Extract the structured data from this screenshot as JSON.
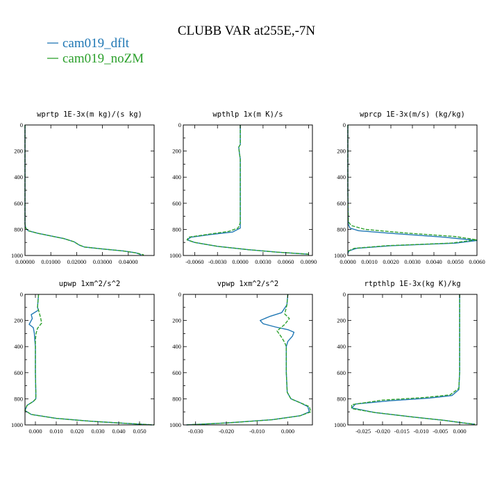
{
  "title": "CLUBB VAR at255E,-7N",
  "legend": [
    {
      "name": "cam019_dflt",
      "color": "#1f77b4"
    },
    {
      "name": "cam019_noZM",
      "color": "#2ca02c"
    }
  ],
  "chart_data": [
    {
      "type": "line",
      "title": "wprtp  1E-3x(m kg)/(s kg)",
      "xlim": [
        0,
        0.05
      ],
      "ylim": [
        0,
        1000
      ],
      "y_inverted": true,
      "xticks": [
        0,
        0.01,
        0.02,
        0.03,
        0.04
      ],
      "xtick_labels": [
        "0.00000",
        "0.01000",
        "0.02000",
        "0.03000",
        "0.04000"
      ],
      "yticks": [
        0,
        200,
        400,
        600,
        800,
        1000
      ],
      "series": [
        {
          "name": "cam019_dflt",
          "x": [
            0,
            0,
            0,
            0.0003,
            0.0012,
            0.005,
            0.01,
            0.015,
            0.019,
            0.021,
            0.023,
            0.03,
            0.038,
            0.043,
            0.045
          ],
          "y": [
            0,
            600,
            760,
            790,
            810,
            830,
            850,
            870,
            895,
            920,
            935,
            950,
            965,
            980,
            995
          ]
        },
        {
          "name": "cam019_noZM",
          "x": [
            0,
            0,
            0,
            0.0003,
            0.0012,
            0.005,
            0.01,
            0.015,
            0.019,
            0.021,
            0.023,
            0.03,
            0.038,
            0.043,
            0.046
          ],
          "y": [
            0,
            600,
            760,
            790,
            810,
            830,
            850,
            870,
            895,
            920,
            935,
            950,
            965,
            980,
            995
          ]
        }
      ]
    },
    {
      "type": "line",
      "title": "wpthlp  1x(m K)/s",
      "xlim": [
        -0.0075,
        0.0095
      ],
      "ylim": [
        0,
        1000
      ],
      "y_inverted": true,
      "xticks": [
        -0.006,
        -0.003,
        0,
        0.003,
        0.006,
        0.009
      ],
      "xtick_labels": [
        "-0.0060",
        "-0.0030",
        "0.0000",
        "0.0030",
        "0.0060",
        "0.0090"
      ],
      "yticks": [
        0,
        200,
        400,
        600,
        800,
        1000
      ],
      "series": [
        {
          "name": "cam019_dflt",
          "x": [
            0,
            0,
            -0.0002,
            -0.0001,
            0,
            0,
            0,
            0,
            0,
            -0.001,
            -0.004,
            -0.0065,
            -0.007,
            -0.006,
            -0.003,
            0.001,
            0.005,
            0.009
          ],
          "y": [
            0,
            150,
            170,
            220,
            260,
            400,
            600,
            750,
            790,
            820,
            840,
            860,
            880,
            900,
            930,
            955,
            975,
            990
          ]
        },
        {
          "name": "cam019_noZM",
          "x": [
            0,
            0,
            -0.0002,
            -0.0001,
            0,
            0,
            0,
            0,
            -0.0003,
            -0.0015,
            -0.0045,
            -0.0068,
            -0.007,
            -0.006,
            -0.003,
            0.001,
            0.005,
            0.009
          ],
          "y": [
            0,
            150,
            170,
            220,
            260,
            400,
            600,
            750,
            790,
            815,
            840,
            860,
            880,
            900,
            930,
            955,
            975,
            990
          ]
        }
      ]
    },
    {
      "type": "line",
      "title": "wprcp  1E-3x(m/s) (kg/kg)",
      "xlim": [
        0,
        0.006
      ],
      "ylim": [
        0,
        1000
      ],
      "y_inverted": true,
      "xticks": [
        0,
        0.001,
        0.002,
        0.003,
        0.004,
        0.005,
        0.006
      ],
      "xtick_labels": [
        "0.0000",
        "0.0010",
        "0.0020",
        "0.0030",
        "0.0040",
        "0.0050",
        "0.0060"
      ],
      "yticks": [
        0,
        200,
        400,
        600,
        800,
        1000
      ],
      "series": [
        {
          "name": "cam019_dflt",
          "x": [
            0,
            0,
            2e-05,
            0.0001,
            0.0005,
            0.002,
            0.0045,
            0.006,
            0.005,
            0.002,
            0.0004,
            5e-05,
            0
          ],
          "y": [
            0,
            500,
            760,
            790,
            810,
            830,
            860,
            885,
            905,
            925,
            945,
            965,
            985
          ]
        },
        {
          "name": "cam019_noZM",
          "x": [
            0,
            0,
            2e-05,
            0.00015,
            0.0008,
            0.0025,
            0.005,
            0.006,
            0.0048,
            0.0018,
            0.0003,
            3e-05,
            0
          ],
          "y": [
            0,
            500,
            740,
            770,
            800,
            825,
            855,
            880,
            905,
            925,
            945,
            965,
            985
          ]
        }
      ]
    },
    {
      "type": "line",
      "title": "upwp  1xm^2/s^2",
      "xlim": [
        -0.005,
        0.057
      ],
      "ylim": [
        0,
        1000
      ],
      "y_inverted": true,
      "xticks": [
        0,
        0.01,
        0.02,
        0.03,
        0.04,
        0.05
      ],
      "xtick_labels": [
        "0.000",
        "0.010",
        "0.020",
        "0.030",
        "0.040",
        "0.050"
      ],
      "yticks": [
        0,
        200,
        400,
        600,
        800,
        1000
      ],
      "series": [
        {
          "name": "cam019_dflt",
          "x": [
            0.0015,
            0.001,
            0.0015,
            -0.002,
            -0.0015,
            -0.003,
            -0.001,
            -0.0005,
            -0.0003,
            0,
            0,
            0.0002,
            0.0002,
            -0.001,
            -0.004,
            -0.005,
            -0.002,
            0.01,
            0.025,
            0.04,
            0.056
          ],
          "y": [
            0,
            100,
            120,
            155,
            185,
            230,
            255,
            300,
            350,
            400,
            600,
            750,
            800,
            820,
            850,
            890,
            920,
            950,
            970,
            985,
            1000
          ]
        },
        {
          "name": "cam019_noZM",
          "x": [
            0.0015,
            0.001,
            0.0015,
            0.0025,
            0.003,
            0.001,
            0.0003,
            0,
            0,
            0.0002,
            0.0002,
            -0.001,
            -0.004,
            -0.005,
            -0.002,
            0.01,
            0.025,
            0.04,
            0.057
          ],
          "y": [
            0,
            100,
            120,
            180,
            220,
            260,
            300,
            350,
            600,
            750,
            800,
            820,
            850,
            890,
            920,
            950,
            970,
            985,
            1000
          ]
        }
      ]
    },
    {
      "type": "line",
      "title": "vpwp  1xm^2/s^2",
      "xlim": [
        -0.034,
        0.008
      ],
      "ylim": [
        0,
        1000
      ],
      "y_inverted": true,
      "xticks": [
        -0.03,
        -0.02,
        -0.01,
        0
      ],
      "xtick_labels": [
        "-0.030",
        "-0.020",
        "-0.010",
        "0.000"
      ],
      "yticks": [
        0,
        200,
        400,
        600,
        800,
        1000
      ],
      "series": [
        {
          "name": "cam019_dflt",
          "x": [
            0,
            -0.0003,
            -0.002,
            -0.006,
            -0.009,
            -0.008,
            -0.004,
            0,
            0.002,
            0.0015,
            0,
            -0.0005,
            -0.0005,
            -0.0002,
            0.001,
            0.004,
            0.0065,
            0.007,
            0.004,
            -0.005,
            -0.02,
            -0.033
          ],
          "y": [
            0,
            80,
            140,
            170,
            200,
            225,
            250,
            270,
            290,
            320,
            360,
            400,
            600,
            750,
            800,
            830,
            860,
            900,
            930,
            960,
            985,
            1000
          ]
        },
        {
          "name": "cam019_noZM",
          "x": [
            0,
            -0.0003,
            -0.001,
            0.0005,
            -0.001,
            -0.0035,
            -0.002,
            -0.001,
            -0.0005,
            -0.0005,
            -0.0002,
            0.001,
            0.004,
            0.007,
            0.0075,
            0.004,
            -0.005,
            -0.02,
            -0.033
          ],
          "y": [
            0,
            80,
            150,
            185,
            230,
            280,
            330,
            370,
            400,
            600,
            750,
            800,
            830,
            860,
            900,
            930,
            960,
            985,
            1000
          ]
        }
      ]
    },
    {
      "type": "line",
      "title": "rtpthlp  1E-3x(kg K)/kg",
      "xlim": [
        -0.029,
        0.0045
      ],
      "ylim": [
        0,
        1000
      ],
      "y_inverted": true,
      "xticks": [
        -0.025,
        -0.02,
        -0.015,
        -0.01,
        -0.005,
        0
      ],
      "xtick_labels": [
        "-0.025",
        "-0.020",
        "-0.015",
        "-0.010",
        "-0.005",
        "0.000"
      ],
      "yticks": [
        0,
        200,
        400,
        600,
        800,
        1000
      ],
      "series": [
        {
          "name": "cam019_dflt",
          "x": [
            0,
            0,
            -0.0002,
            -0.002,
            -0.008,
            -0.018,
            -0.027,
            -0.028,
            -0.022,
            -0.012,
            -0.004,
            0.001,
            0.004
          ],
          "y": [
            0,
            600,
            730,
            775,
            795,
            815,
            840,
            870,
            905,
            940,
            965,
            985,
            995
          ]
        },
        {
          "name": "cam019_noZM",
          "x": [
            0,
            0,
            -0.0002,
            -0.0025,
            -0.009,
            -0.02,
            -0.028,
            -0.028,
            -0.022,
            -0.012,
            -0.004,
            0.001,
            0.004
          ],
          "y": [
            0,
            600,
            720,
            770,
            790,
            810,
            845,
            875,
            905,
            940,
            965,
            985,
            995
          ]
        }
      ]
    }
  ]
}
